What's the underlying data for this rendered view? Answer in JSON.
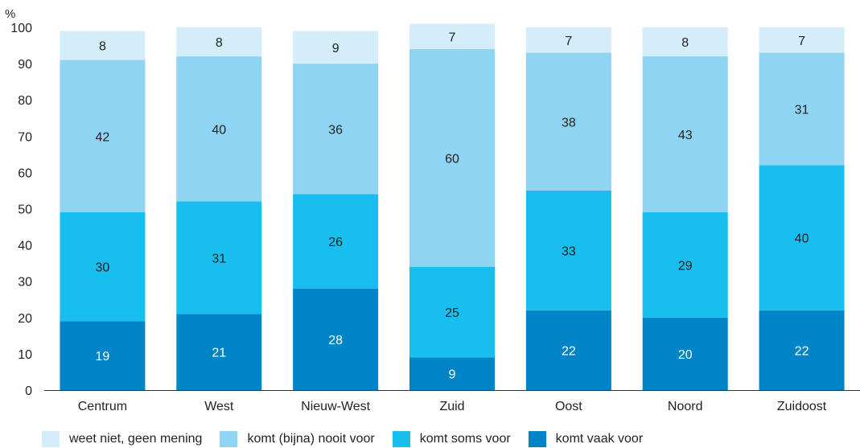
{
  "chart_data": {
    "type": "bar",
    "stacked": true,
    "unit_label": "%",
    "categories": [
      "Centrum",
      "West",
      "Nieuw-West",
      "Zuid",
      "Oost",
      "Noord",
      "Zuidoost"
    ],
    "ylim": [
      0,
      100
    ],
    "yticks": [
      0,
      10,
      20,
      30,
      40,
      50,
      60,
      70,
      80,
      90,
      100
    ],
    "grid": false,
    "legend_position": "bottom",
    "series": [
      {
        "name": "komt vaak voor",
        "color": "#0084C8",
        "label_color": "#ffffff",
        "values": [
          19,
          21,
          28,
          9,
          22,
          20,
          22
        ]
      },
      {
        "name": "komt soms voor",
        "color": "#18BEEE",
        "label_color": "#222222",
        "values": [
          30,
          31,
          26,
          25,
          33,
          29,
          40
        ]
      },
      {
        "name": "komt (bijna) nooit voor",
        "color": "#8FD4F2",
        "label_color": "#222222",
        "values": [
          42,
          40,
          36,
          60,
          38,
          43,
          31
        ]
      },
      {
        "name": "weet niet, geen mening",
        "color": "#D3EDFA",
        "label_color": "#222222",
        "values": [
          8,
          8,
          9,
          7,
          7,
          8,
          7
        ]
      }
    ],
    "legend_order": [
      3,
      2,
      1,
      0
    ]
  }
}
